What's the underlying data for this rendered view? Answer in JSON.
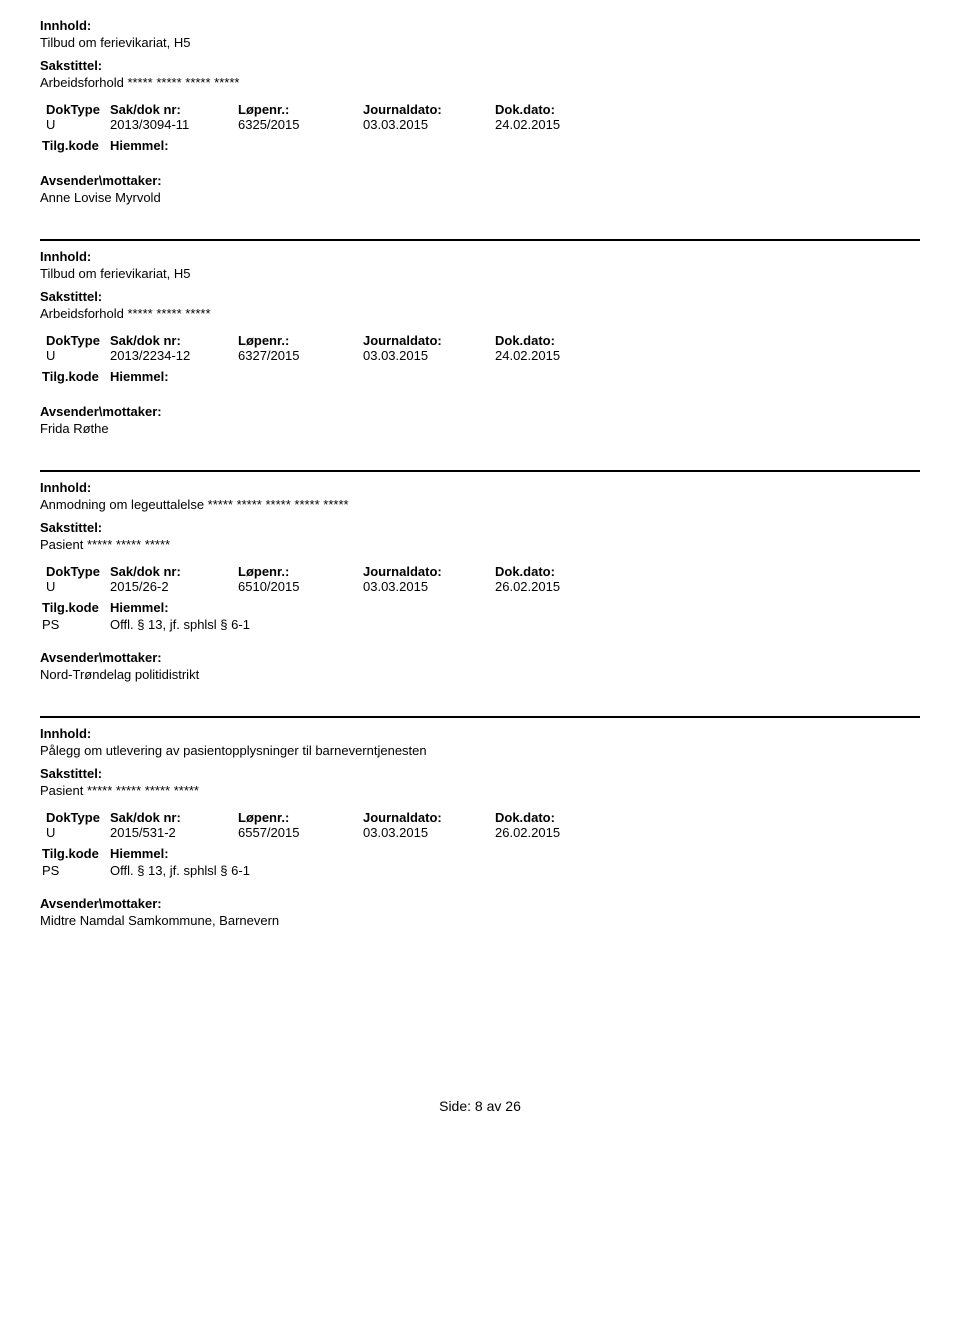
{
  "labels": {
    "innhold": "Innhold:",
    "sakstittel": "Sakstittel:",
    "doktype": "DokType",
    "sakdoknr": "Sak/dok nr:",
    "lopenr": "Løpenr.:",
    "journaldato": "Journaldato:",
    "dokdato": "Dok.dato:",
    "tilgkode": "Tilg.kode",
    "hiemmel": "Hiemmel:",
    "avsender": "Avsender\\mottaker:",
    "side": "Side:",
    "av": "av"
  },
  "entries": [
    {
      "innhold": "Tilbud om ferievikariat, H5",
      "sakstittel": "Arbeidsforhold ***** ***** ***** *****",
      "doktype": "U",
      "sakdoknr": "2013/3094-11",
      "lopenr": "6325/2015",
      "journaldato": "03.03.2015",
      "dokdato": "24.02.2015",
      "tilgkode": "",
      "hiemmel": "",
      "avsender": "Anne Lovise Myrvold"
    },
    {
      "innhold": "Tilbud om ferievikariat, H5",
      "sakstittel": "Arbeidsforhold  ***** ***** *****",
      "doktype": "U",
      "sakdoknr": "2013/2234-12",
      "lopenr": "6327/2015",
      "journaldato": "03.03.2015",
      "dokdato": "24.02.2015",
      "tilgkode": "",
      "hiemmel": "",
      "avsender": "Frida Røthe"
    },
    {
      "innhold": "Anmodning om legeuttalelse ***** ***** ***** ***** *****",
      "sakstittel": "Pasient ***** ***** *****",
      "doktype": "U",
      "sakdoknr": "2015/26-2",
      "lopenr": "6510/2015",
      "journaldato": "03.03.2015",
      "dokdato": "26.02.2015",
      "tilgkode": "PS",
      "hiemmel": "Offl. § 13, jf. sphlsl § 6-1",
      "avsender": "Nord-Trøndelag politidistrikt"
    },
    {
      "innhold": "Pålegg om utlevering av pasientopplysninger til barneverntjenesten",
      "sakstittel": "Pasient ***** ***** ***** *****",
      "doktype": "U",
      "sakdoknr": "2015/531-2",
      "lopenr": "6557/2015",
      "journaldato": "03.03.2015",
      "dokdato": "26.02.2015",
      "tilgkode": "PS",
      "hiemmel": "Offl. § 13, jf. sphlsl § 6-1",
      "avsender": "Midtre Namdal Samkommune, Barnevern"
    }
  ],
  "page": {
    "current": "8",
    "total": "26"
  }
}
